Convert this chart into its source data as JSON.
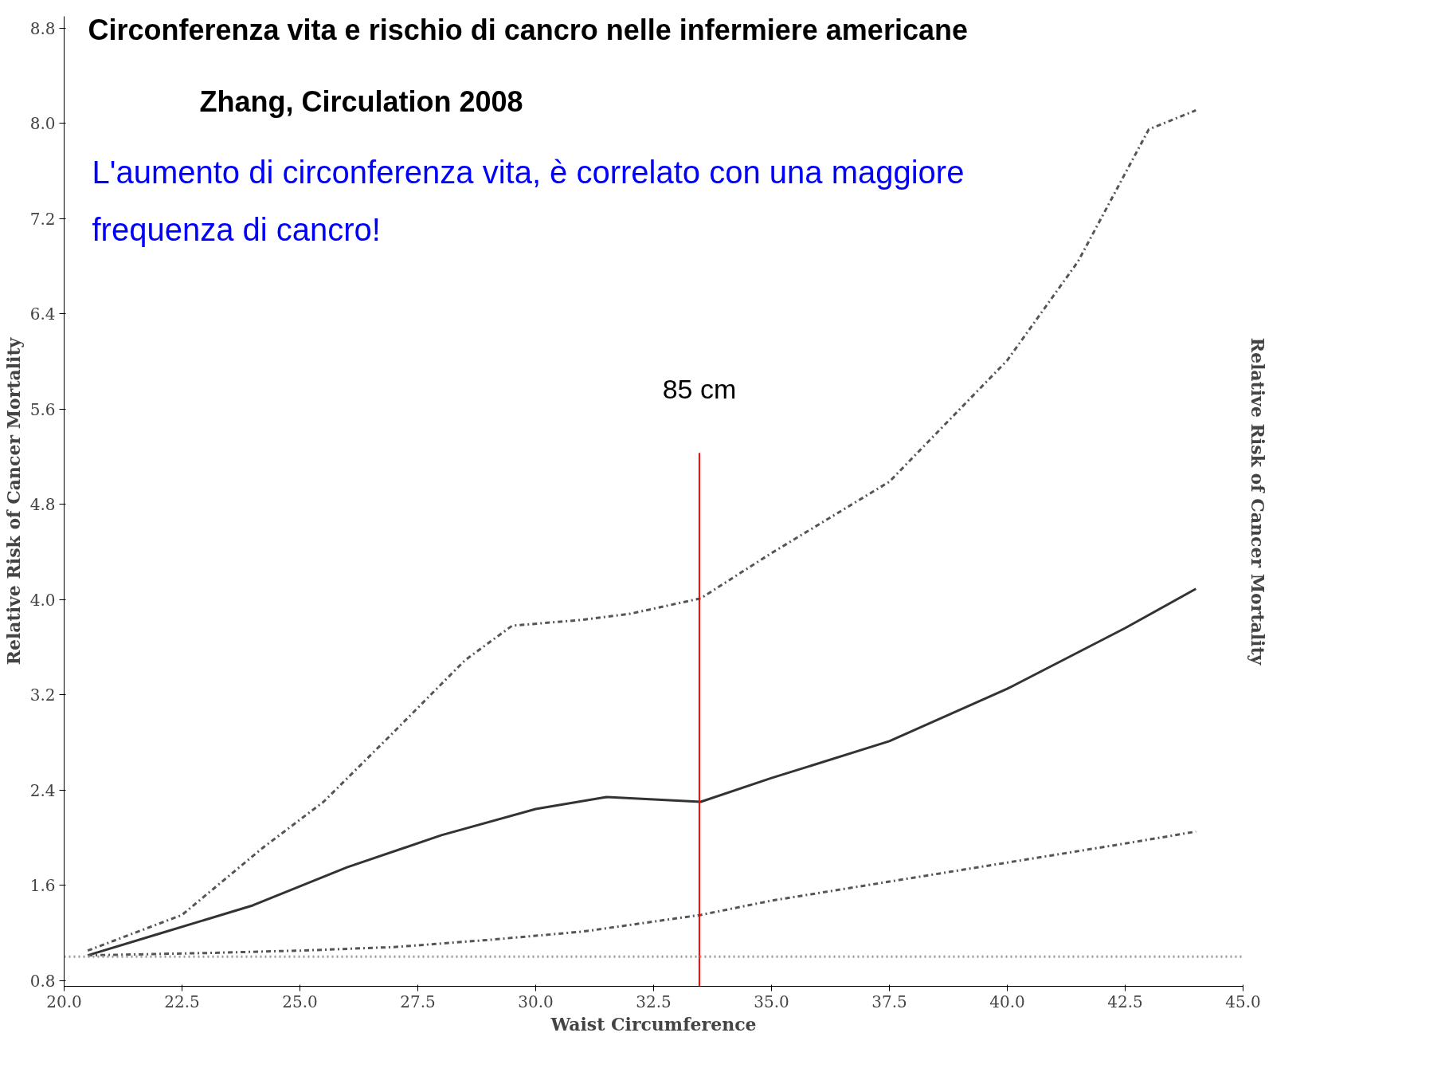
{
  "chart_data": {
    "type": "line",
    "title": "Circonferenza vita e rischio di cancro nelle infermiere americane",
    "subtitle": "Zhang, Circulation 2008",
    "xlabel": "Waist Circumference",
    "ylabel": "Relative Risk of Cancer Mortality",
    "y2label": "Relative Risk of Cancer Mortality",
    "annotations": [
      "L'aumento di circonferenza vita, è correlato con una maggiore\nfrequenza di cancro!"
    ],
    "xlim": [
      20,
      45
    ],
    "xticks": [
      {
        "value": 20,
        "label": "20.0"
      },
      22.5,
      {
        "value": 25,
        "label": "25.0"
      },
      27.5,
      {
        "value": 30,
        "label": "30.0"
      },
      32.5,
      {
        "value": 35,
        "label": "35.0"
      },
      37.5,
      {
        "value": 40,
        "label": "40.0"
      },
      42.5,
      {
        "value": 45,
        "label": "45.0"
      }
    ],
    "ylim": [
      0.75,
      8.9
    ],
    "yticks": [
      0.8,
      1.6,
      2.4,
      3.2,
      {
        "value": 4,
        "label": "4.0"
      },
      4.8,
      5.6,
      6.4,
      7.2,
      {
        "value": 8,
        "label": "8.0"
      },
      8.8
    ],
    "grid": false,
    "marker": "none",
    "series": [
      {
        "color": "#555555",
        "line_style": "dashed",
        "x": [
          20.5,
          22.5,
          24.2,
          25.5,
          27,
          28.5,
          29.5,
          31,
          32,
          33.5,
          35,
          37.5,
          40,
          41.5,
          43,
          44
        ],
        "values": [
          1.05,
          1.35,
          1.91,
          2.3,
          2.89,
          3.49,
          3.78,
          3.83,
          3.88,
          4.01,
          4.39,
          4.99,
          6.01,
          6.84,
          7.95,
          8.11
        ]
      },
      {
        "color": "#333333",
        "line_style": "solid",
        "x": [
          20.5,
          22,
          24,
          26,
          28,
          30,
          31.5,
          33.5,
          35,
          37.5,
          40,
          42.5,
          44
        ],
        "values": [
          1.01,
          1.19,
          1.43,
          1.75,
          2.02,
          2.24,
          2.34,
          2.3,
          2.5,
          2.81,
          3.25,
          3.76,
          4.09
        ]
      },
      {
        "color": "#555555",
        "line_style": "dashed",
        "x": [
          20.5,
          23,
          25,
          27,
          29,
          31,
          33.5,
          35,
          37.5,
          40,
          42.5,
          44
        ],
        "values": [
          1.01,
          1.03,
          1.05,
          1.08,
          1.14,
          1.21,
          1.35,
          1.47,
          1.63,
          1.79,
          1.95,
          2.05
        ]
      }
    ],
    "ref_lines": [
      {
        "axis": "y",
        "value": 1.0,
        "label": null,
        "color": "#999999",
        "line_style": "dotted"
      },
      {
        "axis": "x",
        "value": 33.47,
        "label": "85 cm",
        "color": "#ff0000",
        "line_style": "solid"
      }
    ]
  }
}
